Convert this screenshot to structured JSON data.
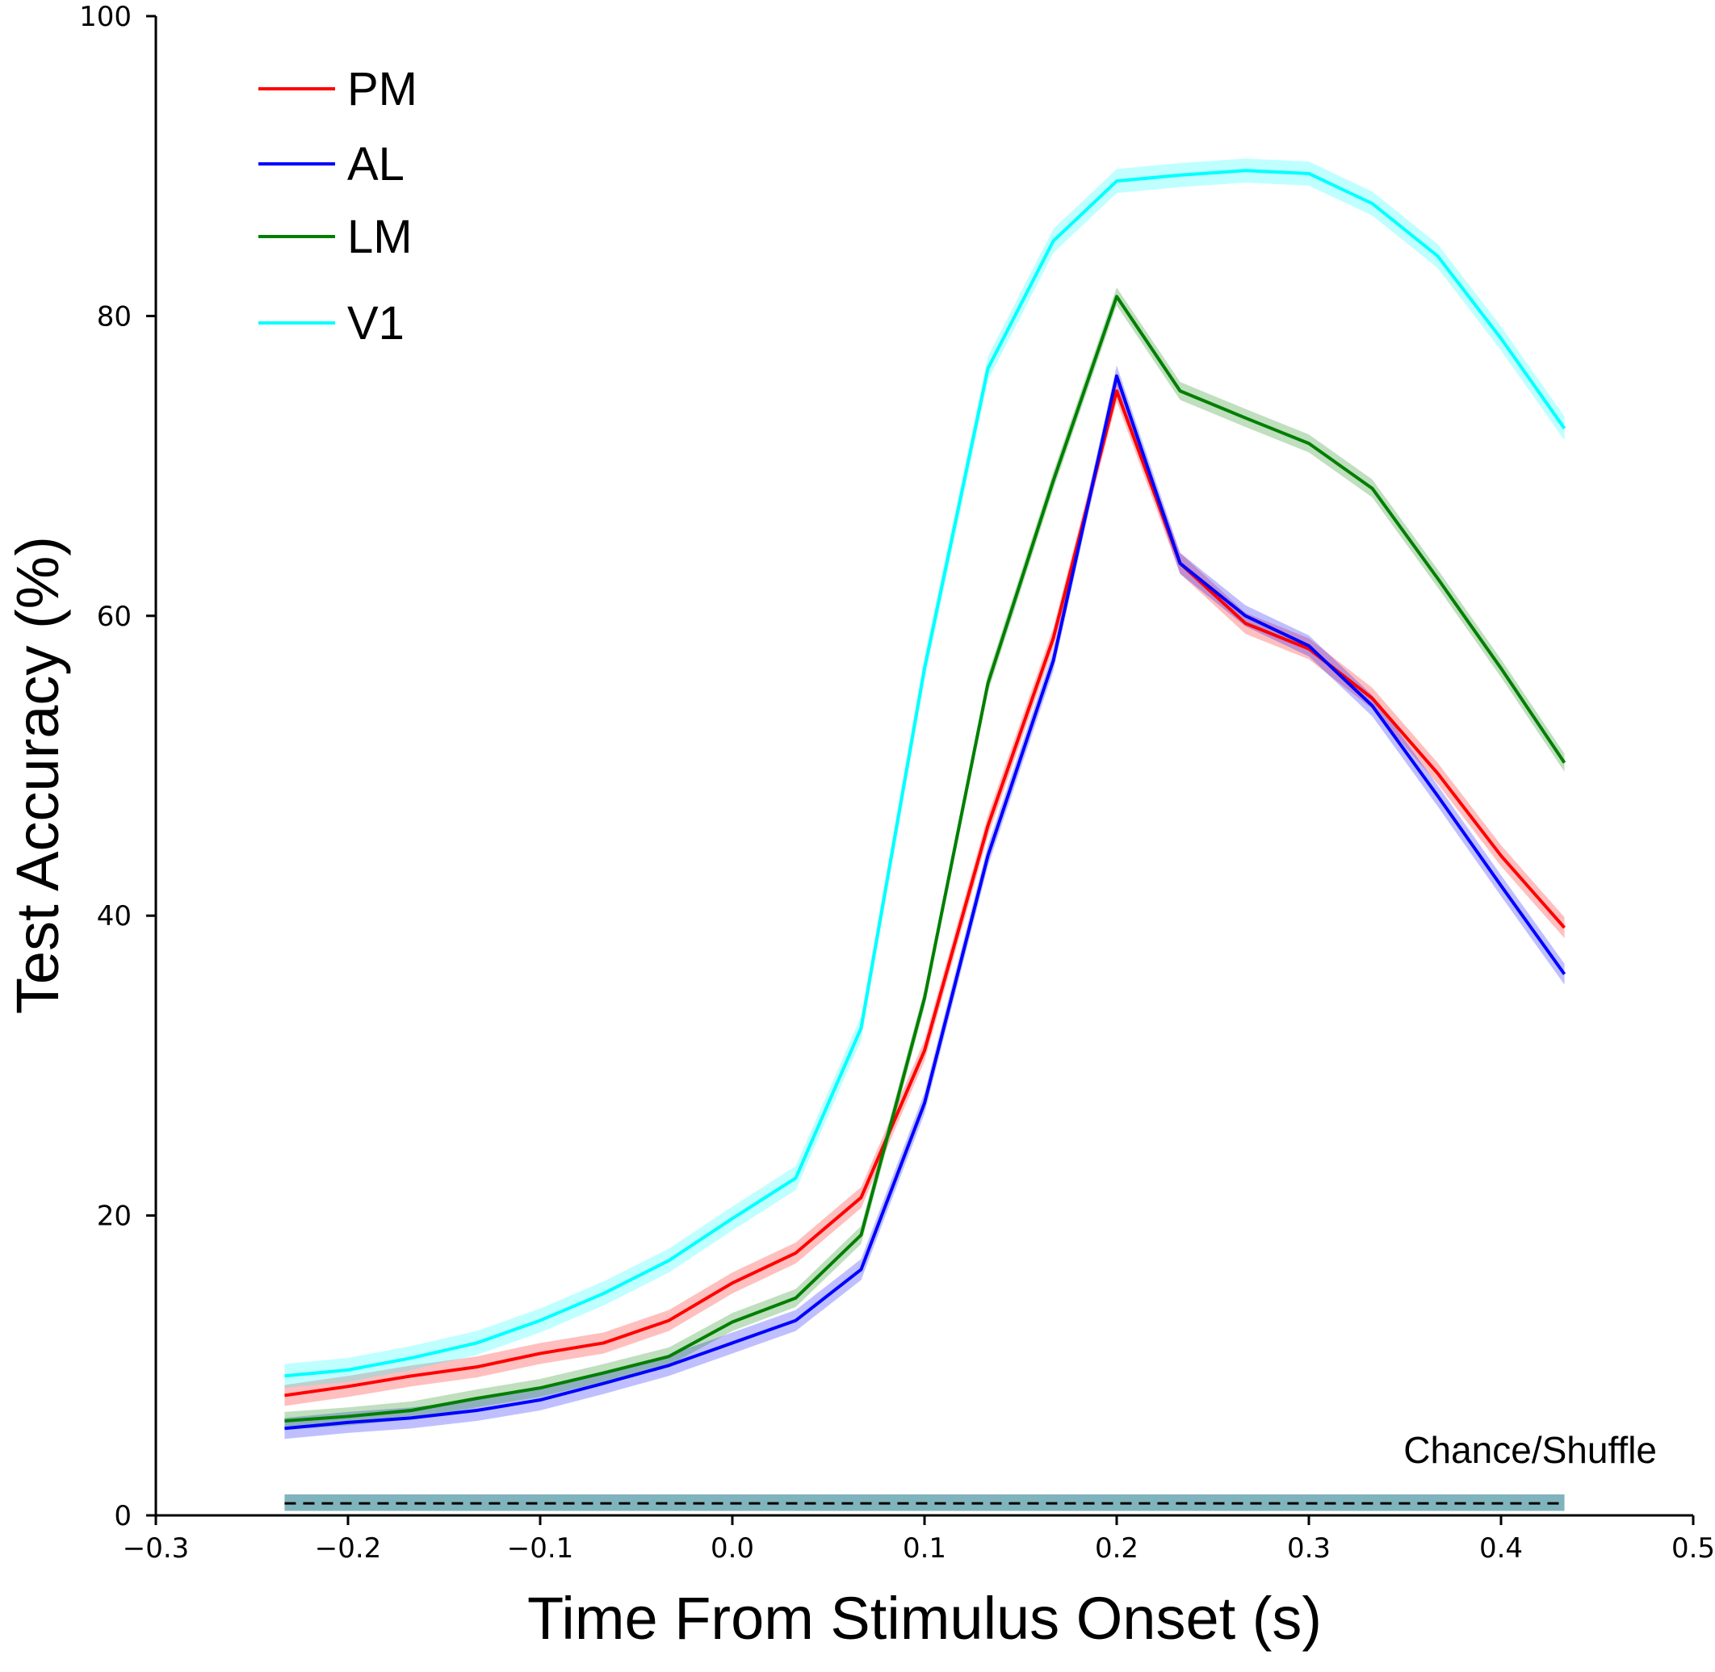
{
  "chart_data": {
    "type": "line",
    "title": "",
    "xlabel": "Time From Stimulus Onset (s)",
    "ylabel": "Test Accuracy (%)",
    "xlim": [
      -0.3,
      0.5
    ],
    "ylim": [
      0,
      100
    ],
    "xticks": [
      -0.3,
      -0.2,
      -0.1,
      0.0,
      0.1,
      0.2,
      0.3,
      0.4,
      0.5
    ],
    "xtick_labels": [
      "−0.3",
      "−0.2",
      "−0.1",
      "0.0",
      "0.1",
      "0.2",
      "0.3",
      "0.4",
      "0.5"
    ],
    "yticks": [
      0,
      20,
      40,
      60,
      80,
      100
    ],
    "ytick_labels": [
      "0",
      "20",
      "40",
      "60",
      "80",
      "100"
    ],
    "grid": false,
    "legend_position": "top-left",
    "x": [
      -0.233,
      -0.2,
      -0.167,
      -0.133,
      -0.1,
      -0.067,
      -0.033,
      0.0,
      0.033,
      0.067,
      0.1,
      0.133,
      0.167,
      0.2,
      0.233,
      0.267,
      0.3,
      0.333,
      0.367,
      0.4,
      0.433
    ],
    "series": [
      {
        "name": "PM",
        "color": "#ff0000",
        "band": 0.7,
        "values": [
          8.0,
          8.6,
          9.3,
          9.9,
          10.8,
          11.5,
          13.0,
          15.5,
          17.5,
          21.2,
          31.0,
          46.0,
          58.5,
          75.0,
          63.5,
          59.5,
          57.8,
          54.5,
          49.5,
          44.0,
          39.2
        ]
      },
      {
        "name": "AL",
        "color": "#0000ff",
        "band": 0.7,
        "values": [
          5.8,
          6.2,
          6.5,
          7.0,
          7.7,
          8.8,
          10.0,
          11.5,
          13.0,
          16.4,
          27.5,
          44.0,
          57.0,
          76.0,
          63.5,
          60.0,
          58.0,
          54.0,
          48.0,
          42.0,
          36.1
        ]
      },
      {
        "name": "LM",
        "color": "#007f00",
        "band": 0.6,
        "values": [
          6.3,
          6.6,
          7.0,
          7.8,
          8.5,
          9.5,
          10.6,
          12.9,
          14.5,
          18.7,
          34.5,
          55.5,
          69.0,
          81.3,
          75.0,
          73.2,
          71.5,
          68.5,
          62.5,
          56.5,
          50.2
        ]
      },
      {
        "name": "V1",
        "color": "#00ffff",
        "band": 0.8,
        "values": [
          9.3,
          9.7,
          10.5,
          11.5,
          13.0,
          14.8,
          17.0,
          19.8,
          22.5,
          32.5,
          56.5,
          76.5,
          85.0,
          89.0,
          89.4,
          89.7,
          89.5,
          87.5,
          84.0,
          78.5,
          72.5
        ]
      }
    ],
    "shuffle_band": {
      "color": "#6aa7b1",
      "low": 0.3,
      "high": 1.4
    },
    "chance_line": {
      "style": "dashed",
      "color": "#000000",
      "value": 0.8
    },
    "annotations": [
      {
        "text": "Chance/Shuffle"
      }
    ]
  }
}
